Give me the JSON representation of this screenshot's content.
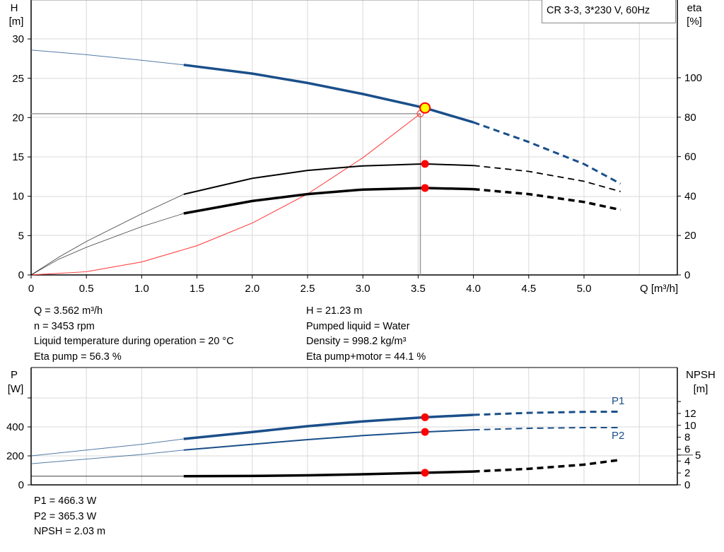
{
  "chart_data": [
    {
      "type": "line",
      "title": "",
      "legend_label": "CR 3-3, 3*230 V, 60Hz",
      "xlabel": "Q [m³/h]",
      "ylabel_left": [
        "H",
        "[m]"
      ],
      "ylabel_right": [
        "eta",
        "[%]"
      ],
      "xlim": [
        0,
        5.5
      ],
      "ylim_left": [
        0,
        35
      ],
      "ylim_right": [
        0,
        140
      ],
      "x_ticks": [
        "0",
        "0.5",
        "1.0",
        "1.5",
        "2.0",
        "2.5",
        "3.0",
        "3.5",
        "4.0",
        "4.5",
        "5.0"
      ],
      "y_ticks_left": [
        "0",
        "5",
        "10",
        "15",
        "20",
        "25",
        "30"
      ],
      "y_ticks_right": [
        "0",
        "20",
        "40",
        "60",
        "80",
        "100"
      ],
      "grid": true,
      "solid_range_q": [
        1.38,
        4.0
      ],
      "series": [
        {
          "id": "head",
          "axis": "left",
          "color": "#1a4f8a",
          "points": [
            [
              0,
              28.6
            ],
            [
              0.5,
              28.0
            ],
            [
              1.0,
              27.3
            ],
            [
              1.38,
              26.7
            ],
            [
              2.0,
              25.6
            ],
            [
              2.5,
              24.4
            ],
            [
              3.0,
              23.0
            ],
            [
              3.56,
              21.23
            ],
            [
              4.0,
              19.4
            ],
            [
              4.5,
              16.9
            ],
            [
              5.0,
              14.1
            ],
            [
              5.33,
              11.6
            ]
          ]
        },
        {
          "id": "eta-pump",
          "axis": "right",
          "color": "#000000",
          "points": [
            [
              0,
              0
            ],
            [
              0.25,
              9
            ],
            [
              0.5,
              17
            ],
            [
              0.75,
              24
            ],
            [
              1.0,
              31
            ],
            [
              1.38,
              40.9
            ],
            [
              2.0,
              49
            ],
            [
              2.5,
              53
            ],
            [
              3.0,
              55.3
            ],
            [
              3.56,
              56.3
            ],
            [
              4.0,
              55.5
            ],
            [
              4.5,
              52.5
            ],
            [
              5.0,
              47.5
            ],
            [
              5.33,
              42.3
            ]
          ]
        },
        {
          "id": "eta-pump-motor",
          "axis": "right",
          "color": "#000000",
          "points": [
            [
              0,
              0
            ],
            [
              0.25,
              8
            ],
            [
              0.5,
              14
            ],
            [
              1.0,
              24.5
            ],
            [
              1.38,
              31.2
            ],
            [
              2.0,
              37.5
            ],
            [
              2.5,
              41
            ],
            [
              3.0,
              43.3
            ],
            [
              3.56,
              44.1
            ],
            [
              4.0,
              43.5
            ],
            [
              4.5,
              41
            ],
            [
              5.0,
              37
            ],
            [
              5.33,
              33
            ]
          ]
        },
        {
          "id": "system-curve",
          "axis": "left",
          "color": "#ff3333",
          "points": [
            [
              0,
              0
            ],
            [
              0.5,
              0.41
            ],
            [
              1.0,
              1.65
            ],
            [
              1.5,
              3.72
            ],
            [
              2.0,
              6.6
            ],
            [
              2.5,
              10.3
            ],
            [
              3.0,
              14.9
            ],
            [
              3.52,
              20.5
            ]
          ]
        }
      ],
      "duty_point": {
        "q": 3.562,
        "h": 21.23,
        "eta_pump": 56.3,
        "eta_total": 44.1
      },
      "system_intersection": {
        "q": 3.52,
        "h": 20.5
      }
    },
    {
      "type": "line",
      "title": "",
      "ylabel_left": [
        "P",
        "[W]"
      ],
      "ylabel_right": [
        "NPSH",
        "[m]"
      ],
      "xlim": [
        0,
        5.5
      ],
      "ylim_left": [
        0,
        800
      ],
      "y_ticks_left": [
        "0",
        "200",
        "400",
        ""
      ],
      "y_ticks_right": [
        "0",
        "2",
        "4",
        "5",
        "6",
        "8",
        "10",
        "12",
        ""
      ],
      "grid": true,
      "series": [
        {
          "id": "P1",
          "name": "P1",
          "axis": "left",
          "color": "#1a4f8a",
          "points": [
            [
              0,
              200
            ],
            [
              0.5,
              240
            ],
            [
              1.0,
              280
            ],
            [
              1.38,
              317
            ],
            [
              2.0,
              365
            ],
            [
              2.5,
              405
            ],
            [
              3.0,
              438
            ],
            [
              3.56,
              466.3
            ],
            [
              4.0,
              483
            ],
            [
              4.5,
              497
            ],
            [
              5.0,
              504
            ],
            [
              5.33,
              505
            ]
          ]
        },
        {
          "id": "P2",
          "name": "P2",
          "axis": "left",
          "color": "#1a4f8a",
          "points": [
            [
              0,
              146
            ],
            [
              0.5,
              178
            ],
            [
              1.0,
              210
            ],
            [
              1.38,
              240
            ],
            [
              2.0,
              280
            ],
            [
              2.5,
              312
            ],
            [
              3.0,
              340
            ],
            [
              3.56,
              365.3
            ],
            [
              4.0,
              380
            ],
            [
              4.5,
              390
            ],
            [
              5.0,
              395
            ],
            [
              5.33,
              395
            ]
          ]
        },
        {
          "id": "NPSH",
          "axis": "right",
          "color": "#000000",
          "points": [
            [
              0,
              1.45
            ],
            [
              1.38,
              1.45
            ],
            [
              2.0,
              1.5
            ],
            [
              2.5,
              1.6
            ],
            [
              3.0,
              1.78
            ],
            [
              3.56,
              2.03
            ],
            [
              4.0,
              2.25
            ],
            [
              4.5,
              2.7
            ],
            [
              5.0,
              3.4
            ],
            [
              5.33,
              4.2
            ]
          ]
        }
      ]
    }
  ],
  "info_top": {
    "left": [
      "Q = 3.562 m³/h",
      "n = 3453 rpm",
      "Liquid temperature during operation = 20 °C",
      "Eta pump = 56.3 %"
    ],
    "right": [
      "H = 21.23 m",
      "Pumped liquid = Water",
      "Density = 998.2 kg/m³",
      "Eta pump+motor = 44.1 %"
    ]
  },
  "info_bottom": [
    "P1 = 466.3 W",
    "P2 = 365.3 W",
    "NPSH = 2.03 m"
  ],
  "colors": {
    "curve_blue": "#1a4f8a",
    "marker_red": "#ff0000",
    "duty_yellow": "#ffff00",
    "grid": "#d8d8d8"
  }
}
